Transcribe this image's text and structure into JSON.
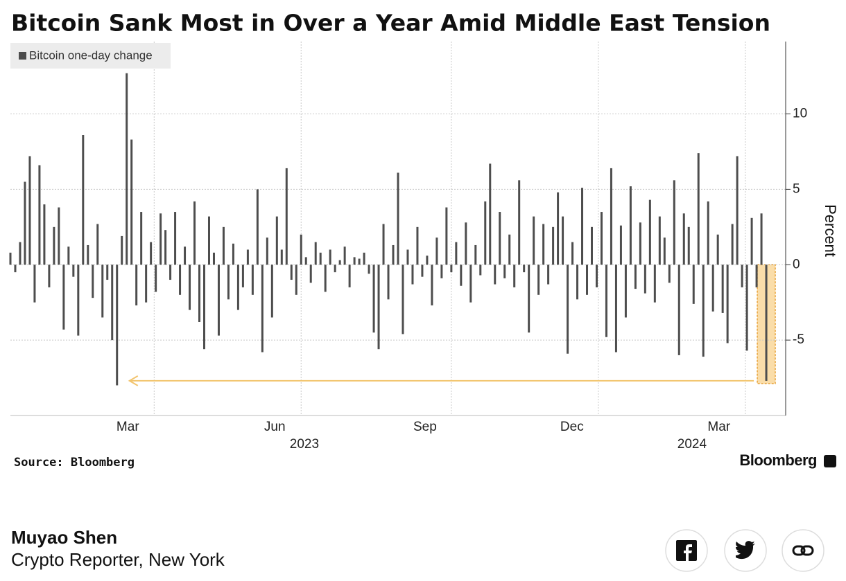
{
  "chart_data": {
    "type": "bar",
    "title": "Bitcoin Sank Most in Over a Year Amid Middle East Tension",
    "y_label": "Percent",
    "x": [
      0,
      3,
      6,
      9,
      12,
      15,
      18,
      21,
      24,
      27,
      30,
      33,
      36,
      39,
      42,
      45,
      48,
      51,
      54,
      57,
      60,
      63,
      66,
      69,
      72,
      75,
      78,
      81,
      84,
      87,
      90,
      93,
      96,
      99,
      102,
      105,
      108,
      111,
      114,
      117,
      120,
      123,
      126,
      129,
      132,
      135,
      138,
      141,
      144,
      147,
      150,
      153,
      156,
      159,
      162,
      165,
      168,
      171,
      174,
      177,
      180,
      183,
      186,
      189,
      192,
      195,
      198,
      201,
      204,
      207,
      210,
      213,
      216,
      219,
      222,
      225,
      228,
      231,
      234,
      237,
      240,
      243,
      246,
      249,
      252,
      255,
      258,
      261,
      264,
      267,
      270,
      273,
      276,
      279,
      282,
      285,
      288,
      291,
      294,
      297,
      300,
      303,
      306,
      309,
      312,
      315,
      318,
      321,
      324,
      327,
      330,
      333,
      336,
      339,
      342,
      345,
      348,
      351,
      354,
      357,
      360,
      363,
      366,
      369,
      372,
      375,
      378,
      381,
      384,
      387,
      390,
      393,
      396,
      399,
      402,
      405,
      408,
      411,
      414,
      417,
      420,
      423,
      426,
      429,
      432,
      435,
      438,
      441,
      444,
      447,
      450,
      453,
      456,
      459,
      462,
      465,
      468
    ],
    "series": [
      {
        "name": "Bitcoin one-day change",
        "color": "#4d4d4d",
        "values": [
          0.8,
          -0.5,
          1.5,
          5.5,
          7.2,
          -2.5,
          6.6,
          4.0,
          -1.5,
          2.5,
          3.8,
          -4.3,
          1.2,
          -0.8,
          -4.7,
          8.6,
          1.3,
          -2.2,
          2.7,
          -3.5,
          -1.0,
          -5.0,
          -8.0,
          1.9,
          12.7,
          8.3,
          -2.7,
          3.5,
          -2.5,
          1.5,
          -1.8,
          3.4,
          2.3,
          -1.0,
          3.5,
          -2.0,
          1.2,
          -3.0,
          4.2,
          -3.8,
          -5.6,
          3.2,
          0.8,
          -4.7,
          2.5,
          -2.3,
          1.4,
          -3.0,
          -1.5,
          1.0,
          -2.0,
          5.0,
          -5.8,
          1.8,
          -3.5,
          3.2,
          1.0,
          6.4,
          -1.0,
          -2.0,
          2.0,
          0.5,
          -1.2,
          1.5,
          0.8,
          -1.8,
          1.0,
          -0.5,
          0.3,
          1.2,
          -1.5,
          0.5,
          0.4,
          0.8,
          -0.6,
          -4.5,
          -5.6,
          2.7,
          -2.3,
          1.3,
          6.1,
          -4.6,
          1.0,
          -1.3,
          2.5,
          -0.8,
          0.6,
          -2.7,
          1.8,
          -0.9,
          3.8,
          -0.5,
          1.5,
          -1.4,
          2.8,
          -2.5,
          1.3,
          -0.7,
          4.2,
          6.7,
          -1.3,
          3.5,
          -0.9,
          2.0,
          -1.5,
          5.6,
          -0.5,
          -4.5,
          3.2,
          -2.0,
          2.7,
          -1.3,
          2.5,
          4.8,
          3.2,
          -5.9,
          1.5,
          -2.3,
          5.1,
          -2.0,
          2.5,
          -1.5,
          3.5,
          -4.8,
          6.4,
          -5.8,
          2.6,
          -3.5,
          5.2,
          -1.6,
          2.8,
          -1.9,
          4.3,
          -2.5,
          3.2,
          1.8,
          -1.2,
          5.6,
          -6.0,
          3.4,
          2.5,
          -2.6,
          7.4,
          -6.1,
          4.2,
          -3.1,
          2.0,
          -3.2,
          -5.2,
          2.7,
          7.2,
          -1.5,
          -5.7,
          3.1,
          -1.5,
          3.4,
          -7.7
        ]
      }
    ],
    "xlim": [
      0,
      480
    ],
    "xticks": [
      {
        "value": 89,
        "label": "Mar"
      },
      {
        "value": 180,
        "label": "Jun"
      },
      {
        "value": 273,
        "label": "Sep"
      },
      {
        "value": 364,
        "label": "Dec"
      },
      {
        "value": 455,
        "label": "Mar"
      }
    ],
    "year_labels": [
      {
        "value": 182,
        "label": "2023"
      },
      {
        "value": 422,
        "label": "2024"
      }
    ],
    "ylim": [
      -10,
      14.8
    ],
    "yticks": [
      -5,
      0,
      5,
      10
    ],
    "grid": true
  },
  "source": "Source: Bloomberg",
  "brand": "Bloomberg",
  "author": {
    "name": "Muyao Shen",
    "role": "Crypto Reporter, New York"
  }
}
